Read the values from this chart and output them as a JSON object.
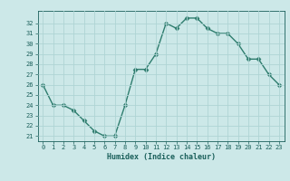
{
  "x": [
    0,
    1,
    2,
    3,
    4,
    5,
    6,
    7,
    8,
    9,
    10,
    11,
    12,
    13,
    14,
    15,
    16,
    17,
    18,
    19,
    20,
    21,
    22,
    23
  ],
  "y": [
    26,
    24,
    24,
    23.5,
    22.5,
    21.5,
    21,
    21,
    24,
    27.5,
    27.5,
    29,
    32,
    31.5,
    32.5,
    32.5,
    31.5,
    31,
    31,
    30,
    28.5,
    28.5,
    27,
    26
  ],
  "xlabel": "Humidex (Indice chaleur)",
  "ylim": [
    20.5,
    33.2
  ],
  "xlim": [
    -0.5,
    23.5
  ],
  "yticks": [
    21,
    22,
    23,
    24,
    25,
    26,
    27,
    28,
    29,
    30,
    31,
    32
  ],
  "xticks": [
    0,
    1,
    2,
    3,
    4,
    5,
    6,
    7,
    8,
    9,
    10,
    11,
    12,
    13,
    14,
    15,
    16,
    17,
    18,
    19,
    20,
    21,
    22,
    23
  ],
  "line_color": "#2e7d6e",
  "bg_color": "#cce8e8",
  "grid_color": "#afd4d4",
  "text_color": "#1a5f5a",
  "marker": "D",
  "marker_size": 2.5,
  "line_width": 1.0,
  "fig_bg": "#cce8e8"
}
